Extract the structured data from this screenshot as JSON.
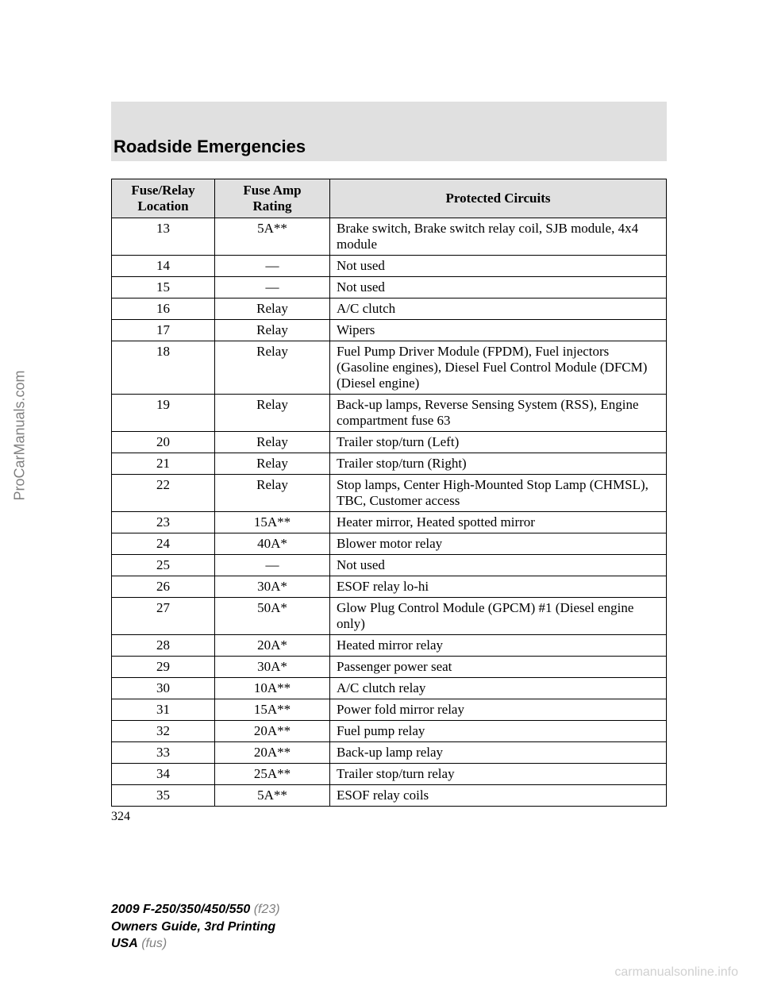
{
  "sidebar_watermark": "ProCarManuals.com",
  "section_title": "Roadside Emergencies",
  "table": {
    "headers": {
      "col1_line1": "Fuse/Relay",
      "col1_line2": "Location",
      "col2_line1": "Fuse Amp",
      "col2_line2": "Rating",
      "col3": "Protected Circuits"
    },
    "rows": [
      {
        "loc": "13",
        "amp": "5A**",
        "circ": "Brake switch, Brake switch relay coil, SJB module, 4x4 module"
      },
      {
        "loc": "14",
        "amp": "—",
        "circ": "Not used"
      },
      {
        "loc": "15",
        "amp": "—",
        "circ": "Not used"
      },
      {
        "loc": "16",
        "amp": "Relay",
        "circ": "A/C clutch"
      },
      {
        "loc": "17",
        "amp": "Relay",
        "circ": "Wipers"
      },
      {
        "loc": "18",
        "amp": "Relay",
        "circ": "Fuel Pump Driver Module (FPDM), Fuel injectors (Gasoline engines), Diesel Fuel Control Module (DFCM) (Diesel engine)"
      },
      {
        "loc": "19",
        "amp": "Relay",
        "circ": "Back-up lamps, Reverse Sensing System (RSS), Engine compartment fuse 63"
      },
      {
        "loc": "20",
        "amp": "Relay",
        "circ": "Trailer stop/turn (Left)"
      },
      {
        "loc": "21",
        "amp": "Relay",
        "circ": "Trailer stop/turn (Right)"
      },
      {
        "loc": "22",
        "amp": "Relay",
        "circ": "Stop lamps, Center High-Mounted Stop Lamp (CHMSL), TBC, Customer access"
      },
      {
        "loc": "23",
        "amp": "15A**",
        "circ": "Heater mirror, Heated spotted mirror"
      },
      {
        "loc": "24",
        "amp": "40A*",
        "circ": "Blower motor relay"
      },
      {
        "loc": "25",
        "amp": "—",
        "circ": "Not used"
      },
      {
        "loc": "26",
        "amp": "30A*",
        "circ": "ESOF relay lo-hi"
      },
      {
        "loc": "27",
        "amp": "50A*",
        "circ": "Glow Plug Control Module (GPCM) #1 (Diesel engine only)"
      },
      {
        "loc": "28",
        "amp": "20A*",
        "circ": "Heated mirror relay"
      },
      {
        "loc": "29",
        "amp": "30A*",
        "circ": "Passenger power seat"
      },
      {
        "loc": "30",
        "amp": "10A**",
        "circ": "A/C clutch relay"
      },
      {
        "loc": "31",
        "amp": "15A**",
        "circ": "Power fold mirror relay"
      },
      {
        "loc": "32",
        "amp": "20A**",
        "circ": "Fuel pump relay"
      },
      {
        "loc": "33",
        "amp": "20A**",
        "circ": "Back-up lamp relay"
      },
      {
        "loc": "34",
        "amp": "25A**",
        "circ": "Trailer stop/turn relay"
      },
      {
        "loc": "35",
        "amp": "5A**",
        "circ": "ESOF relay coils"
      }
    ]
  },
  "page_number": "324",
  "footer": {
    "line1_bold": "2009 F-250/350/450/550",
    "line1_gray": " (f23)",
    "line2": "Owners Guide, 3rd Printing",
    "line3_bold": "USA",
    "line3_gray": " (fus)"
  },
  "bottom_watermark": "carmanualsonline.info",
  "style": {
    "header_bg": "#e0e0e0",
    "border_color": "#000000",
    "text_color": "#000000",
    "gray_color": "#808080",
    "watermark_color": "#d0d0d0"
  }
}
